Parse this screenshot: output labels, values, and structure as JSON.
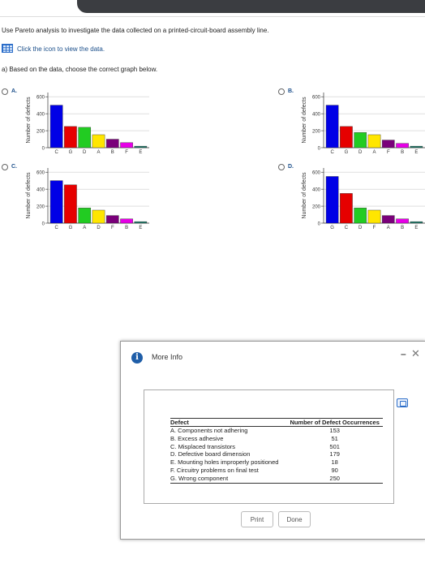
{
  "instructions": {
    "intro": "Use Pareto analysis to investigate the data collected on a printed-circuit-board assembly line.",
    "view_data": "Click the icon to view the data.",
    "part_a": "a) Based on the data, choose the correct graph below."
  },
  "options": [
    {
      "label": "A.",
      "ylabel": "Number of defects",
      "yticks": [
        "0",
        "200",
        "400",
        "600"
      ]
    },
    {
      "label": "B.",
      "ylabel": "Number of defects",
      "yticks": [
        "0",
        "200",
        "400",
        "600"
      ]
    },
    {
      "label": "C.",
      "ylabel": "Number of defects",
      "yticks": [
        "0",
        "200",
        "400",
        "600"
      ]
    },
    {
      "label": "D.",
      "ylabel": "Number of defects",
      "yticks": [
        "0",
        "200",
        "400",
        "600"
      ]
    }
  ],
  "chart_data": [
    {
      "type": "bar",
      "categories": [
        "C",
        "G",
        "D",
        "A",
        "B",
        "F",
        "E"
      ],
      "values": [
        501,
        250,
        240,
        153,
        100,
        60,
        18
      ],
      "ylabel": "Number of defects",
      "ylim": [
        0,
        650
      ],
      "colors": [
        "#0000e6",
        "#e60000",
        "#22cc22",
        "#ffe600",
        "#7a007a",
        "#e600e6",
        "#1b7a6a"
      ]
    },
    {
      "type": "bar",
      "categories": [
        "C",
        "G",
        "D",
        "A",
        "F",
        "B",
        "E"
      ],
      "values": [
        501,
        250,
        179,
        153,
        90,
        51,
        18
      ],
      "ylabel": "Number of defects",
      "ylim": [
        0,
        650
      ],
      "colors": [
        "#0000e6",
        "#e60000",
        "#22cc22",
        "#ffe600",
        "#7a007a",
        "#e600e6",
        "#1b7a6a"
      ]
    },
    {
      "type": "bar",
      "categories": [
        "C",
        "G",
        "A",
        "D",
        "F",
        "B",
        "E"
      ],
      "values": [
        501,
        451,
        179,
        153,
        90,
        51,
        18
      ],
      "ylabel": "Number of defects",
      "ylim": [
        0,
        650
      ],
      "colors": [
        "#0000e6",
        "#e60000",
        "#22cc22",
        "#ffe600",
        "#7a007a",
        "#e600e6",
        "#1b7a6a"
      ]
    },
    {
      "type": "bar",
      "categories": [
        "G",
        "C",
        "D",
        "F",
        "A",
        "B",
        "E"
      ],
      "values": [
        550,
        350,
        179,
        153,
        90,
        51,
        18
      ],
      "ylabel": "Number of defects",
      "ylim": [
        0,
        650
      ],
      "colors": [
        "#0000e6",
        "#e60000",
        "#22cc22",
        "#ffe600",
        "#7a007a",
        "#e600e6",
        "#1b7a6a"
      ]
    }
  ],
  "modal": {
    "title": "More Info",
    "headers": {
      "defect": "Defect",
      "occurrences": "Number of Defect Occurrences"
    },
    "rows": [
      {
        "defect": "A. Components not adhering",
        "count": "153"
      },
      {
        "defect": "B. Excess adhesive",
        "count": "51"
      },
      {
        "defect": "C. Misplaced transistors",
        "count": "501"
      },
      {
        "defect": "D. Defective board dimension",
        "count": "179"
      },
      {
        "defect": "E. Mounting holes improperly positioned",
        "count": "18"
      },
      {
        "defect": "F. Circuitry problems on final test",
        "count": "90"
      },
      {
        "defect": "G. Wrong component",
        "count": "250"
      }
    ],
    "print_label": "Print",
    "done_label": "Done"
  }
}
